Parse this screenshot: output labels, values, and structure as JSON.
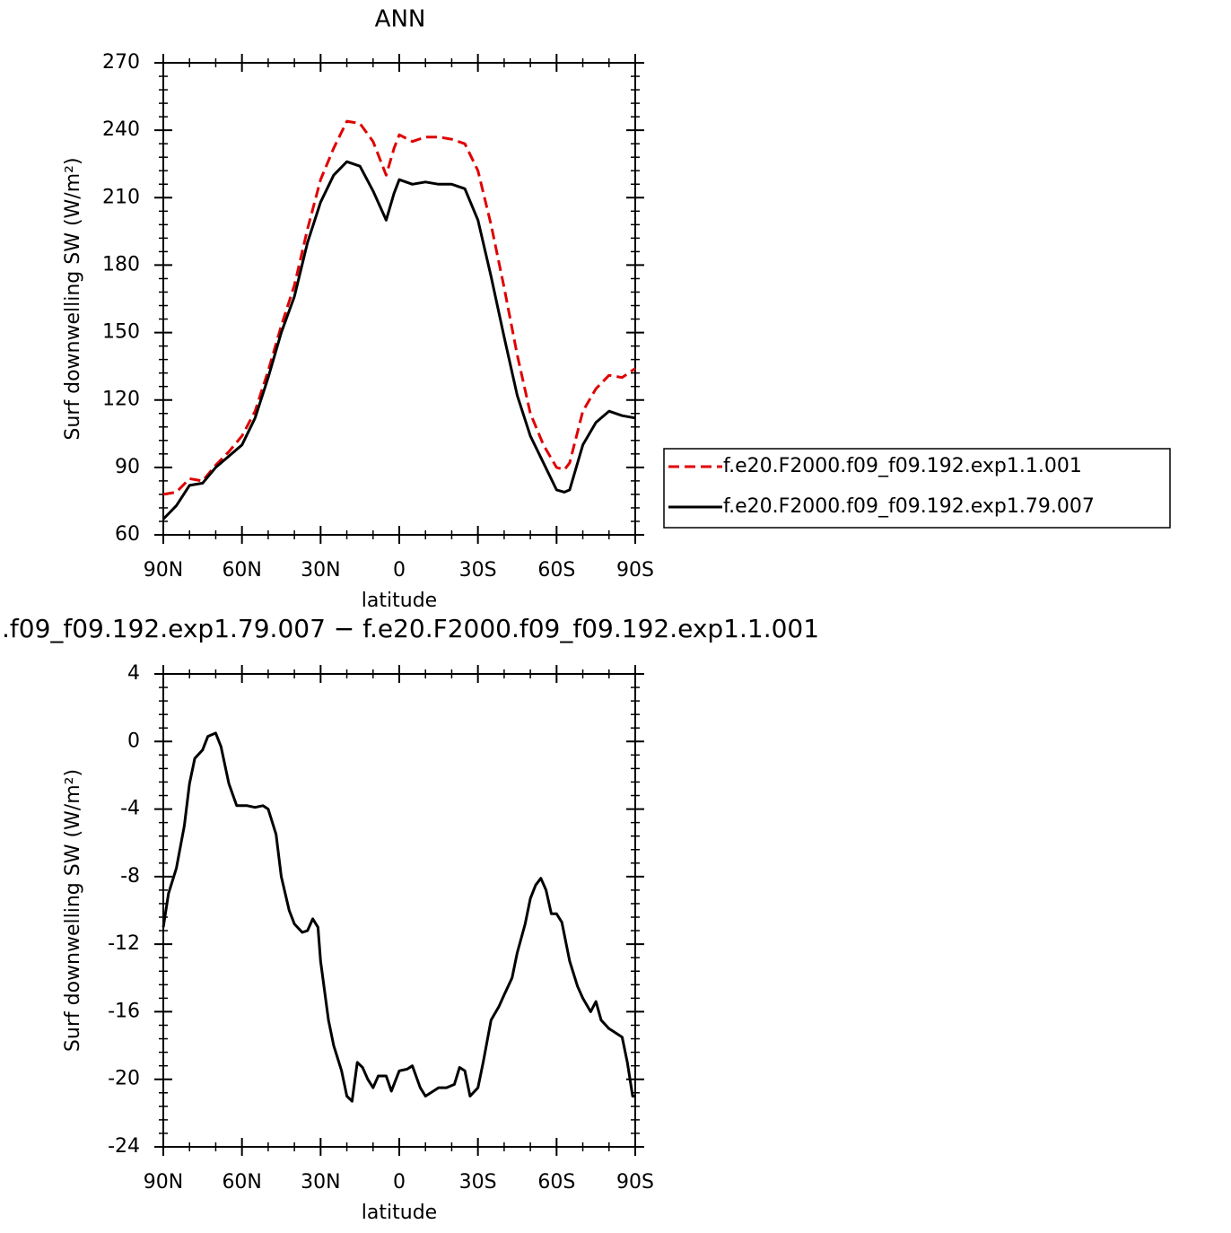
{
  "chart_data": [
    {
      "type": "line",
      "title": "ANN",
      "xlabel": "latitude",
      "ylabel": "Surf downwelling SW (W/m²)",
      "x": [
        90,
        85,
        80,
        75,
        70,
        65,
        60,
        55,
        50,
        45,
        40,
        35,
        30,
        25,
        20,
        15,
        10,
        5,
        2,
        0,
        -5,
        -10,
        -15,
        -20,
        -25,
        -30,
        -35,
        -40,
        -45,
        -50,
        -55,
        -60,
        -63,
        -65,
        -70,
        -75,
        -80,
        -85,
        -90
      ],
      "xlim": [
        90,
        -90
      ],
      "xticks": [
        {
          "value": 90,
          "label": "90N"
        },
        {
          "value": 60,
          "label": "60N"
        },
        {
          "value": 30,
          "label": "30N"
        },
        0,
        {
          "value": -30,
          "label": "30S"
        },
        {
          "value": -60,
          "label": "60S"
        },
        {
          "value": -90,
          "label": "90S"
        }
      ],
      "ylim": [
        60,
        270
      ],
      "yticks": [
        60,
        90,
        120,
        150,
        180,
        210,
        240,
        270
      ],
      "series": [
        {
          "name": "f.e20.F2000.f09_f09.192.exp1.1.001",
          "color": "#e00000",
          "dashed": true,
          "values": [
            78,
            79,
            85,
            84,
            91,
            97,
            104,
            115,
            133,
            153,
            171,
            196,
            218,
            232,
            244,
            243,
            235,
            220,
            232,
            238,
            235,
            237,
            237,
            236,
            234,
            222,
            198,
            170,
            140,
            114,
            100,
            90,
            89,
            92,
            115,
            125,
            131,
            130,
            134
          ]
        },
        {
          "name": "f.e20.F2000.f09_f09.192.exp1.79.007",
          "color": "#000000",
          "dashed": false,
          "values": [
            67,
            73,
            82,
            83,
            90,
            95,
            100,
            112,
            130,
            150,
            166,
            190,
            208,
            220,
            226,
            224,
            213,
            200,
            212,
            218,
            216,
            217,
            216,
            216,
            214,
            200,
            175,
            148,
            122,
            104,
            92,
            80,
            79,
            80,
            100,
            110,
            115,
            113,
            112
          ]
        }
      ]
    },
    {
      "type": "line",
      "title": ".f09_f09.192.exp1.79.007 − f.e20.F2000.f09_f09.192.exp1.1.001",
      "xlabel": "latitude",
      "ylabel": "Surf downwelling SW (W/m²)",
      "x": [
        90,
        88,
        85,
        82,
        80,
        78,
        75,
        73,
        70,
        68,
        65,
        62,
        58,
        55,
        52,
        50,
        47,
        45,
        42,
        40,
        37,
        35,
        33,
        31,
        30,
        27,
        25,
        22,
        20,
        18,
        16,
        14,
        12,
        10,
        8,
        5,
        3,
        0,
        -3,
        -5,
        -8,
        -10,
        -13,
        -15,
        -18,
        -21,
        -23,
        -25,
        -27,
        -30,
        -32,
        -35,
        -38,
        -40,
        -43,
        -45,
        -48,
        -50,
        -52,
        -54,
        -56,
        -58,
        -60,
        -62,
        -65,
        -68,
        -70,
        -73,
        -75,
        -77,
        -80,
        -83,
        -85,
        -87,
        -89,
        -90
      ],
      "xlim": [
        90,
        -90
      ],
      "xticks": [
        {
          "value": 90,
          "label": "90N"
        },
        {
          "value": 60,
          "label": "60N"
        },
        {
          "value": 30,
          "label": "30N"
        },
        0,
        {
          "value": -30,
          "label": "30S"
        },
        {
          "value": -60,
          "label": "60S"
        },
        {
          "value": -90,
          "label": "90S"
        }
      ],
      "ylim": [
        -24,
        4
      ],
      "yticks": [
        -24,
        -20,
        -16,
        -12,
        -8,
        -4,
        0,
        4
      ],
      "series": [
        {
          "color": "#000000",
          "dashed": false,
          "values": [
            -11,
            -9,
            -7.5,
            -5,
            -2.5,
            -1,
            -0.5,
            0.3,
            0.5,
            -0.3,
            -2.5,
            -3.8,
            -3.8,
            -3.9,
            -3.8,
            -4,
            -5.5,
            -8,
            -10,
            -10.8,
            -11.3,
            -11.2,
            -10.5,
            -11,
            -13,
            -16.5,
            -18,
            -19.5,
            -21,
            -21.3,
            -19,
            -19.3,
            -20,
            -20.5,
            -19.8,
            -19.8,
            -20.7,
            -19.5,
            -19.4,
            -19.2,
            -20.5,
            -21,
            -20.7,
            -20.5,
            -20.5,
            -20.3,
            -19.3,
            -19.5,
            -21,
            -20.5,
            -19,
            -16.5,
            -15.7,
            -15,
            -14,
            -12.5,
            -10.8,
            -9.3,
            -8.5,
            -8.1,
            -8.8,
            -10.2,
            -10.2,
            -10.7,
            -13,
            -14.5,
            -15.2,
            -16,
            -15.4,
            -16.5,
            -17,
            -17.3,
            -17.5,
            -19,
            -21,
            -21
          ]
        }
      ]
    }
  ]
}
